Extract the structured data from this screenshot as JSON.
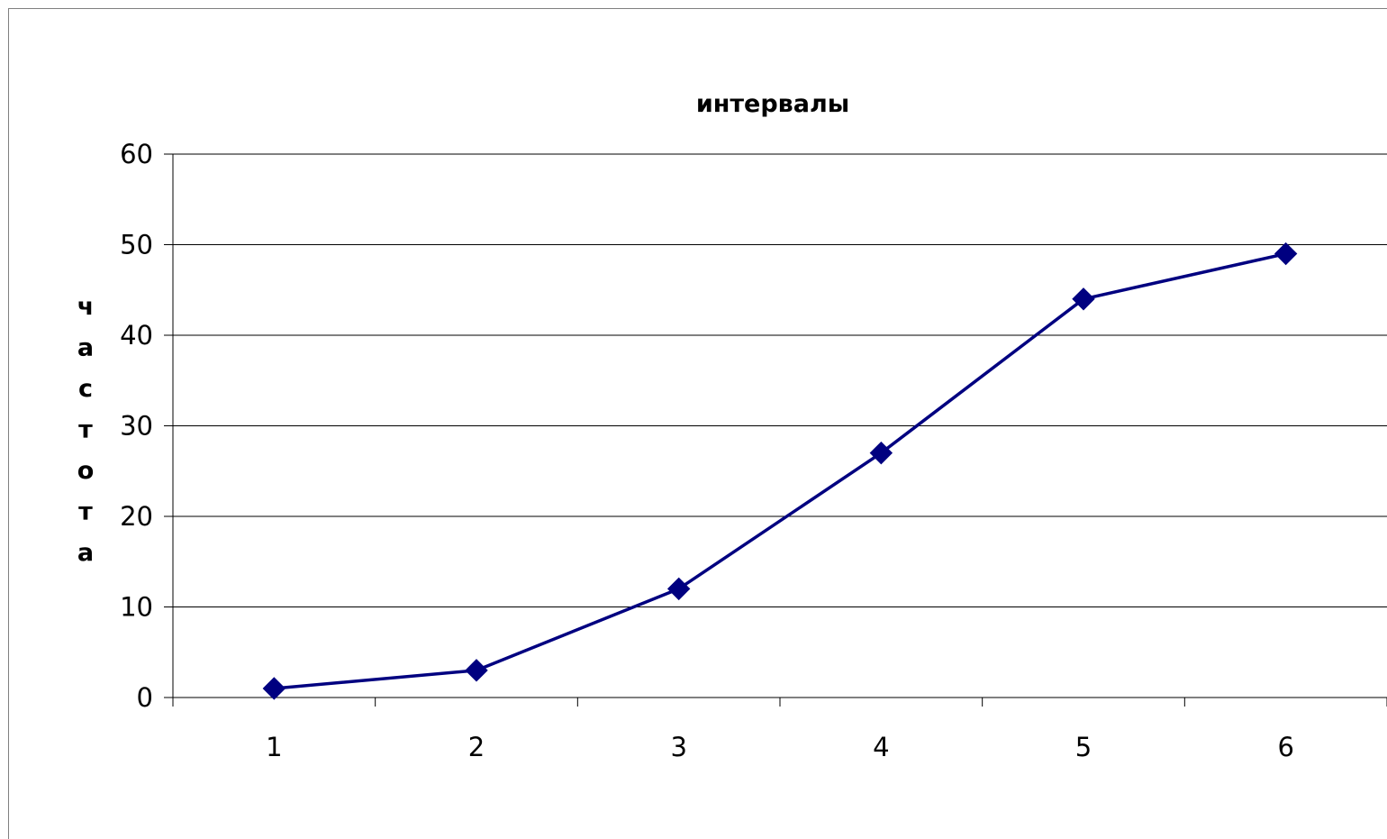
{
  "chart_data": {
    "type": "line",
    "title": "интервалы",
    "xlabel": "",
    "ylabel": "частота",
    "categories": [
      "1",
      "2",
      "3",
      "4",
      "5",
      "6"
    ],
    "series": [
      {
        "values": [
          1,
          3,
          12,
          27,
          44,
          49
        ]
      }
    ],
    "ylim": [
      0,
      60
    ],
    "yticks": [
      0,
      10,
      20,
      30,
      40,
      50,
      60
    ],
    "grid": "horizontal",
    "legend": "none",
    "marker": "diamond",
    "colors": {
      "series": "#000080",
      "grid": "#000000",
      "axis": "#000000",
      "border": "#808080"
    }
  }
}
